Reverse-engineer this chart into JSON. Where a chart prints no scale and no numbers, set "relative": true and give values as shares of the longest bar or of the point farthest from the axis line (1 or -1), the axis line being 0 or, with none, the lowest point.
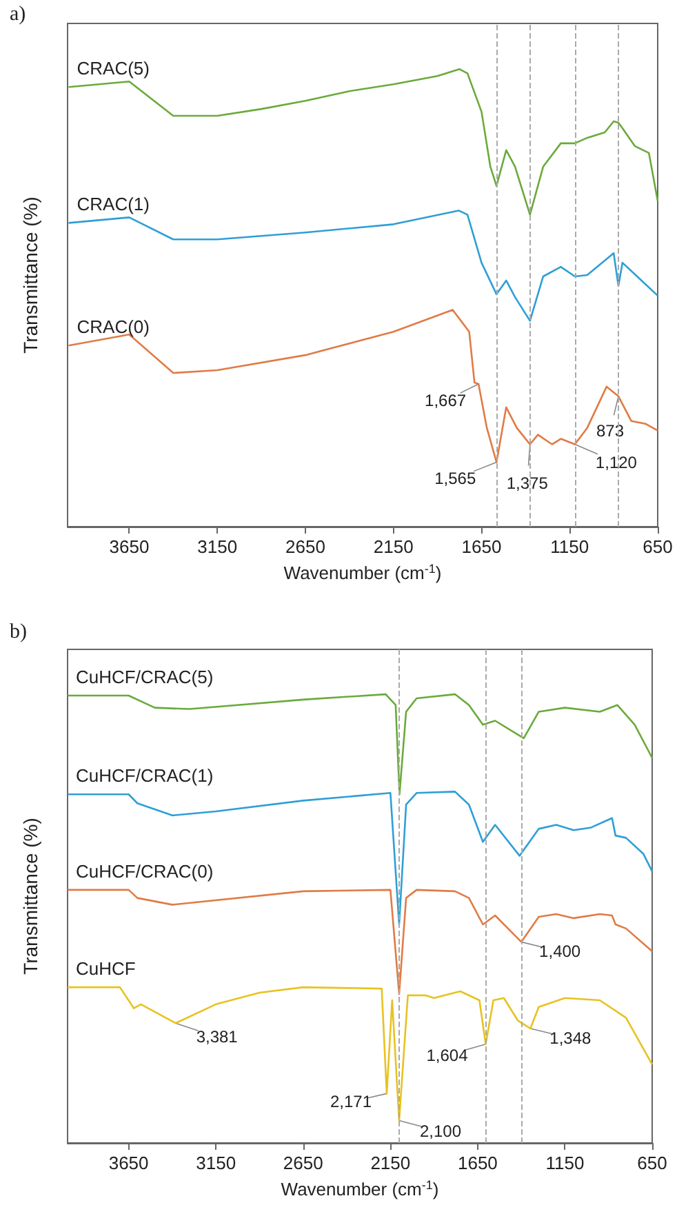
{
  "chart_data": [
    {
      "type": "line",
      "relative": true,
      "title": "a)",
      "xlabel": "Wavenumber (cm$^{-1}$)",
      "ylabel": "Transmittance (%)",
      "xlim": [
        4000,
        650
      ],
      "xticks": [
        3650,
        3150,
        2650,
        2150,
        1650,
        1150,
        650
      ],
      "series": [
        {
          "name": "CRAC(5)",
          "color": "#6aaa3a",
          "x": [
            3994,
            3650,
            3400,
            3150,
            2900,
            2650,
            2400,
            2150,
            1900,
            1775,
            1730,
            1650,
            1600,
            1565,
            1510,
            1460,
            1375,
            1300,
            1200,
            1120,
            1050,
            950,
            900,
            873,
            850,
            780,
            700,
            650
          ],
          "values": [
            0.961,
            0.973,
            0.898,
            0.898,
            0.913,
            0.931,
            0.952,
            0.967,
            0.985,
            1.0,
            0.991,
            0.907,
            0.787,
            0.745,
            0.823,
            0.787,
            0.682,
            0.787,
            0.838,
            0.838,
            0.85,
            0.862,
            0.886,
            0.883,
            0.871,
            0.832,
            0.817,
            0.712
          ]
        },
        {
          "name": "CRAC(1)",
          "color": "#2e9fd6",
          "x": [
            3994,
            3650,
            3400,
            3150,
            2650,
            2150,
            1780,
            1730,
            1650,
            1565,
            1510,
            1460,
            1375,
            1300,
            1200,
            1120,
            1050,
            900,
            873,
            850,
            750,
            650
          ],
          "values": [
            0.664,
            0.676,
            0.628,
            0.628,
            0.643,
            0.661,
            0.691,
            0.682,
            0.577,
            0.508,
            0.538,
            0.502,
            0.45,
            0.547,
            0.568,
            0.547,
            0.55,
            0.598,
            0.526,
            0.577,
            0.541,
            0.505
          ]
        },
        {
          "name": "CRAC(0)",
          "color": "#e07b45",
          "x": [
            3994,
            3650,
            3400,
            3150,
            2650,
            2150,
            1814,
            1720,
            1690,
            1667,
            1620,
            1565,
            1510,
            1450,
            1375,
            1330,
            1250,
            1200,
            1120,
            1050,
            940,
            873,
            800,
            720,
            650
          ],
          "values": [
            0.396,
            0.42,
            0.336,
            0.342,
            0.375,
            0.426,
            0.474,
            0.426,
            0.315,
            0.312,
            0.216,
            0.141,
            0.261,
            0.216,
            0.18,
            0.201,
            0.18,
            0.192,
            0.18,
            0.216,
            0.306,
            0.285,
            0.231,
            0.225,
            0.21
          ]
        }
      ],
      "ref_lines": [
        {
          "axis": "x",
          "value": 1565,
          "color": "#aaaaaa",
          "line_style": "dashed"
        },
        {
          "axis": "x",
          "value": 1375,
          "color": "#aaaaaa",
          "line_style": "dashed"
        },
        {
          "axis": "x",
          "value": 1120,
          "color": "#aaaaaa",
          "line_style": "dashed"
        },
        {
          "axis": "x",
          "value": 873,
          "color": "#aaaaaa",
          "line_style": "dashed"
        }
      ],
      "annotations": [
        {
          "text": "1,667",
          "x": 1667,
          "y": 0.312
        },
        {
          "text": "1,565",
          "x": 1565,
          "y": 0.141
        },
        {
          "text": "1,375",
          "x": 1375,
          "y": 0.18
        },
        {
          "text": "1,120",
          "x": 1120,
          "y": 0.18
        },
        {
          "text": "873",
          "x": 873,
          "y": 0.285
        }
      ]
    },
    {
      "type": "line",
      "relative": true,
      "title": "b)",
      "xlabel": "Wavenumber (cm$^{-1}$)",
      "ylabel": "Transmittance (%)",
      "xlim": [
        4000,
        650
      ],
      "xticks": [
        3650,
        3150,
        2650,
        2150,
        1650,
        1150,
        650
      ],
      "series": [
        {
          "name": "CuHCF/CRAC(5)",
          "color": "#6aaa3a",
          "x": [
            4000,
            3650,
            3500,
            3300,
            2650,
            2177,
            2120,
            2098,
            2060,
            2000,
            1780,
            1700,
            1620,
            1550,
            1386,
            1300,
            1150,
            950,
            850,
            750,
            650
          ],
          "values": [
            0.997,
            0.997,
            0.97,
            0.967,
            0.988,
            1.0,
            0.976,
            0.777,
            0.961,
            0.991,
            1.0,
            0.976,
            0.932,
            0.941,
            0.902,
            0.961,
            0.97,
            0.961,
            0.976,
            0.932,
            0.858
          ]
        },
        {
          "name": "CuHCF/CRAC(1)",
          "color": "#2e9fd6",
          "x": [
            4000,
            3650,
            3600,
            3400,
            3150,
            2650,
            2150,
            2100,
            2060,
            2000,
            1780,
            1700,
            1620,
            1550,
            1410,
            1300,
            1200,
            1100,
            1000,
            880,
            860,
            800,
            700,
            650
          ],
          "values": [
            0.777,
            0.777,
            0.757,
            0.73,
            0.739,
            0.763,
            0.78,
            0.487,
            0.754,
            0.78,
            0.783,
            0.754,
            0.671,
            0.709,
            0.64,
            0.7,
            0.709,
            0.697,
            0.703,
            0.724,
            0.685,
            0.68,
            0.644,
            0.605
          ]
        },
        {
          "name": "CuHCF/CRAC(0)",
          "color": "#e07b45",
          "x": [
            4000,
            3650,
            3600,
            3400,
            2650,
            2150,
            2100,
            2060,
            2000,
            1780,
            1700,
            1620,
            1550,
            1400,
            1300,
            1200,
            1100,
            950,
            880,
            860,
            800,
            650
          ],
          "values": [
            0.564,
            0.564,
            0.546,
            0.531,
            0.561,
            0.564,
            0.332,
            0.546,
            0.564,
            0.561,
            0.546,
            0.487,
            0.507,
            0.448,
            0.504,
            0.51,
            0.501,
            0.51,
            0.507,
            0.487,
            0.478,
            0.427
          ]
        },
        {
          "name": "CuHCF",
          "color": "#e8c220",
          "x": [
            4000,
            3700,
            3620,
            3580,
            3381,
            3150,
            2900,
            2650,
            2200,
            2171,
            2140,
            2100,
            2050,
            1950,
            1900,
            1750,
            1640,
            1604,
            1560,
            1500,
            1420,
            1348,
            1300,
            1150,
            950,
            800,
            650
          ],
          "values": [
            0.347,
            0.347,
            0.3,
            0.309,
            0.267,
            0.309,
            0.335,
            0.347,
            0.344,
            0.11,
            0.318,
            0.05,
            0.329,
            0.329,
            0.323,
            0.338,
            0.318,
            0.22,
            0.318,
            0.323,
            0.273,
            0.255,
            0.303,
            0.323,
            0.318,
            0.279,
            0.175
          ]
        }
      ],
      "ref_lines": [
        {
          "axis": "x",
          "value": 2100,
          "color": "#aaaaaa",
          "line_style": "dashed"
        },
        {
          "axis": "x",
          "value": 1604,
          "color": "#aaaaaa",
          "line_style": "dashed"
        },
        {
          "axis": "x",
          "value": 1400,
          "color": "#aaaaaa",
          "line_style": "dashed"
        }
      ],
      "annotations": [
        {
          "text": "1,400",
          "x": 1400,
          "y": 0.448
        },
        {
          "text": "3,381",
          "x": 3381,
          "y": 0.267
        },
        {
          "text": "2,171",
          "x": 2171,
          "y": 0.11
        },
        {
          "text": "2,100",
          "x": 2100,
          "y": 0.05
        },
        {
          "text": "1,604",
          "x": 1604,
          "y": 0.22
        },
        {
          "text": "1,348",
          "x": 1348,
          "y": 0.255
        }
      ]
    }
  ]
}
